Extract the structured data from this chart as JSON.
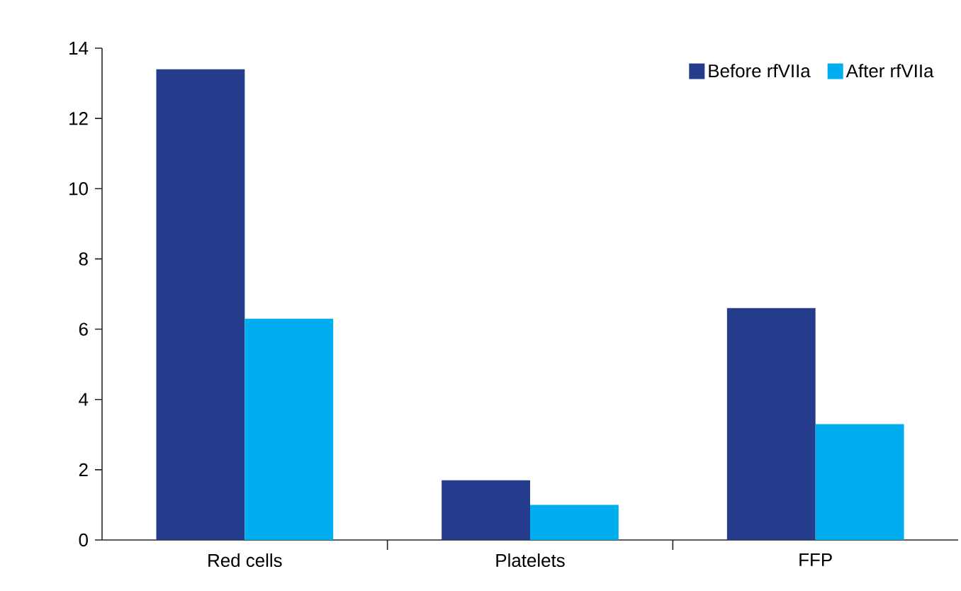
{
  "chart_data": {
    "type": "bar",
    "categories": [
      "Red cells",
      "Platelets",
      "FFP"
    ],
    "series": [
      {
        "name": "Before rfVIIa",
        "color": "#253c8c",
        "values": [
          13.4,
          1.7,
          6.6
        ]
      },
      {
        "name": "After rfVIIa",
        "color": "#00aeef",
        "values": [
          6.3,
          1.0,
          3.3
        ]
      }
    ],
    "ylim": [
      0,
      14
    ],
    "yticks": [
      0,
      2,
      4,
      6,
      8,
      10,
      12,
      14
    ],
    "legend": "top right",
    "grid": false
  }
}
